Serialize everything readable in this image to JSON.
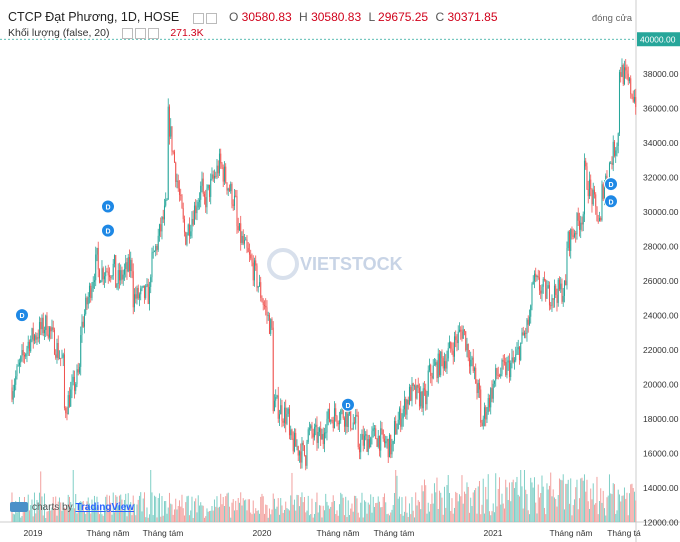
{
  "header": {
    "title": "CTCP Đạt Phương, 1D, HOSE",
    "ohlc": {
      "o_label": "O",
      "o": "30580.83",
      "h_label": "H",
      "h": "30580.83",
      "l_label": "L",
      "l": "29675.25",
      "c_label": "C",
      "c": "30371.85"
    },
    "volume_label": "Khối lượng (false, 20)",
    "volume_value": "271.3K",
    "close_label": "đóng cửa"
  },
  "watermark": "VIETSTOCK",
  "attribution": {
    "prefix": "charts by",
    "brand": "TradingView"
  },
  "colors": {
    "up": "#26a69a",
    "down": "#ef5350",
    "close_line": "#26a69a",
    "last_price_bg": "#26a69a",
    "dividend_marker": "#1e88e5"
  },
  "chart_data": {
    "type": "candlestick",
    "price_axis": {
      "ylim": [
        12000,
        41000
      ],
      "ticks": [
        "12000.00",
        "14000.00",
        "16000.00",
        "18000.00",
        "20000.00",
        "22000.00",
        "24000.00",
        "26000.00",
        "28000.00",
        "30000.00",
        "32000.00",
        "34000.00",
        "36000.00",
        "38000.00",
        "40000.00"
      ],
      "last_price": "40000.00"
    },
    "time_axis": {
      "labels": [
        "2019",
        "Tháng năm",
        "Tháng tám",
        "2020",
        "Tháng năm",
        "Tháng tám",
        "2021",
        "Tháng năm",
        "Tháng tá"
      ]
    },
    "dividend_markers": [
      {
        "label": "D",
        "date": "2019-01",
        "price": 24000
      },
      {
        "label": "D",
        "date": "2019-04",
        "price": 30300
      },
      {
        "label": "D",
        "date": "2019-04",
        "price": 28900
      },
      {
        "label": "D",
        "date": "2020-06",
        "price": 18800
      },
      {
        "label": "D",
        "date": "2021-08",
        "price": 31600
      },
      {
        "label": "D",
        "date": "2021-08",
        "price": 30600
      }
    ],
    "price_path": [
      [
        "2018-11",
        19800
      ],
      [
        "2018-12",
        22500
      ],
      [
        "2019-01",
        23500
      ],
      [
        "2019-02",
        21000
      ],
      [
        "2019-02",
        18500
      ],
      [
        "2019-03",
        20800
      ],
      [
        "2019-03",
        23000
      ],
      [
        "2019-04",
        27500
      ],
      [
        "2019-04",
        26500
      ],
      [
        "2019-05",
        26800
      ],
      [
        "2019-05",
        25800
      ],
      [
        "2019-06",
        27000
      ],
      [
        "2019-06",
        25000
      ],
      [
        "2019-07",
        25200
      ],
      [
        "2019-07",
        26500
      ],
      [
        "2019-08",
        30500
      ],
      [
        "2019-08",
        35800
      ],
      [
        "2019-09",
        28500
      ],
      [
        "2019-10",
        31500
      ],
      [
        "2019-10",
        30200
      ],
      [
        "2019-11",
        32800
      ],
      [
        "2019-12",
        30200
      ],
      [
        "2019-12",
        29000
      ],
      [
        "2020-01",
        26500
      ],
      [
        "2020-02",
        23000
      ],
      [
        "2020-02",
        19000
      ],
      [
        "2020-03",
        18000
      ],
      [
        "2020-03",
        16800
      ],
      [
        "2020-04",
        15800
      ],
      [
        "2020-04",
        17200
      ],
      [
        "2020-05",
        16800
      ],
      [
        "2020-05",
        17800
      ],
      [
        "2020-06",
        18400
      ],
      [
        "2020-07",
        17500
      ],
      [
        "2020-07",
        16500
      ],
      [
        "2020-08",
        17000
      ],
      [
        "2020-09",
        16200
      ],
      [
        "2020-09",
        17200
      ],
      [
        "2020-10",
        19500
      ],
      [
        "2020-11",
        19000
      ],
      [
        "2020-11",
        20500
      ],
      [
        "2020-12",
        21500
      ],
      [
        "2021-01",
        23200
      ],
      [
        "2021-02",
        19000
      ],
      [
        "2021-02",
        17500
      ],
      [
        "2021-03",
        20500
      ],
      [
        "2021-04",
        21200
      ],
      [
        "2021-05",
        24000
      ],
      [
        "2021-05",
        26000
      ],
      [
        "2021-06",
        25200
      ],
      [
        "2021-07",
        25500
      ],
      [
        "2021-07",
        28000
      ],
      [
        "2021-08",
        30000
      ],
      [
        "2021-08",
        32500
      ],
      [
        "2021-09",
        29000
      ],
      [
        "2021-09",
        31000
      ],
      [
        "2021-10",
        34500
      ],
      [
        "2021-10",
        38500
      ],
      [
        "2021-11",
        36500
      ]
    ],
    "volume_ylim": [
      0,
      2000000
    ]
  }
}
